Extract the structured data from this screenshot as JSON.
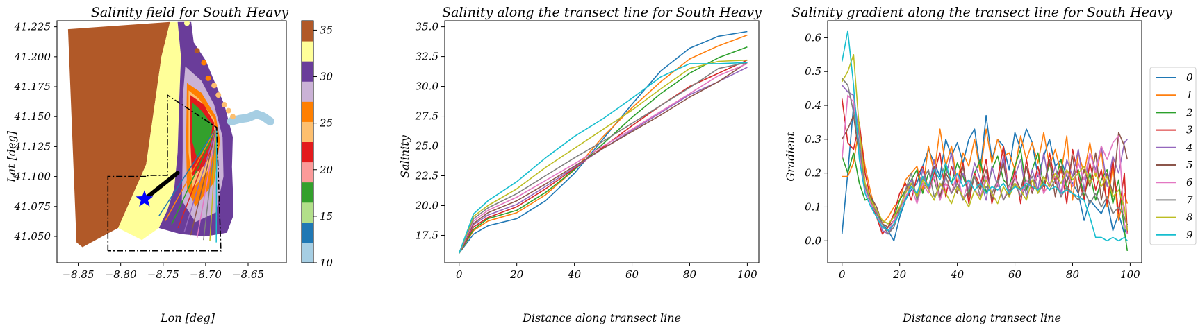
{
  "colors": {
    "series": [
      "#1f77b4",
      "#ff7f0e",
      "#2ca02c",
      "#d62728",
      "#9467bd",
      "#8c564b",
      "#e377c2",
      "#7f7f7f",
      "#bcbd22",
      "#17becf"
    ],
    "paired": [
      "#a6cee3",
      "#1f78b4",
      "#b2df8a",
      "#33a02c",
      "#fb9a99",
      "#e31a1c",
      "#fdbf6f",
      "#ff7f00",
      "#cab2d6",
      "#6a3d9a",
      "#ffff99",
      "#b15928"
    ],
    "star": "#0000ff"
  },
  "chart_data": [
    {
      "type": "heatmap",
      "title": "Salinity field for South Heavy",
      "xlabel": "Lon [deg]",
      "ylabel": "Lat [deg]",
      "xlim": [
        -8.875,
        -8.605
      ],
      "ylim": [
        41.028,
        41.23
      ],
      "xticks": [
        -8.85,
        -8.8,
        -8.75,
        -8.7,
        -8.65
      ],
      "xtick_labels": [
        "−8.85",
        "−8.80",
        "−8.75",
        "−8.70",
        "−8.65"
      ],
      "yticks": [
        41.05,
        41.075,
        41.1,
        41.125,
        41.15,
        41.175,
        41.2,
        41.225
      ],
      "ytick_labels": [
        "41.050",
        "41.075",
        "41.100",
        "41.125",
        "41.150",
        "41.175",
        "41.200",
        "41.225"
      ],
      "colorbar": {
        "min": 10,
        "max": 36,
        "ticks": [
          10,
          15,
          20,
          25,
          30,
          35
        ],
        "tick_labels": [
          "10",
          "15",
          "20",
          "25",
          "30",
          "35"
        ]
      },
      "star": {
        "lon": -8.772,
        "lat": 41.081
      },
      "source_point": {
        "lon": -8.687,
        "lat": 41.141
      },
      "thick_line": {
        "from": [
          -8.772,
          41.081
        ],
        "to": [
          -8.733,
          41.103
        ]
      },
      "box_outer": [
        [
          -8.815,
          41.038
        ],
        [
          -8.815,
          41.1
        ],
        [
          -8.768,
          41.1
        ],
        [
          -8.768,
          41.101
        ],
        [
          -8.745,
          41.101
        ],
        [
          -8.745,
          41.168
        ],
        [
          -8.687,
          41.141
        ],
        [
          -8.682,
          41.038
        ]
      ],
      "transect_endpoints_lat": [
        41.067,
        41.063,
        41.06,
        41.057,
        41.054,
        41.051,
        41.049,
        41.047,
        41.046,
        41.045
      ],
      "plume_points": [
        [
          -8.67,
          41.146
        ],
        [
          -8.66,
          41.148
        ],
        [
          -8.65,
          41.149
        ],
        [
          -8.64,
          41.152
        ],
        [
          -8.632,
          41.15
        ],
        [
          -8.624,
          41.146
        ]
      ]
    },
    {
      "type": "line",
      "title": "Salinity along the transect line for South Heavy",
      "xlabel": "Distance along transect line",
      "ylabel": "Salinity",
      "xlim": [
        -5,
        104
      ],
      "ylim": [
        15.2,
        35.5
      ],
      "xticks": [
        0,
        20,
        40,
        60,
        80,
        100
      ],
      "xtick_labels": [
        "0",
        "20",
        "40",
        "60",
        "80",
        "100"
      ],
      "yticks": [
        17.5,
        20.0,
        22.5,
        25.0,
        27.5,
        30.0,
        32.5,
        35.0
      ],
      "ytick_labels": [
        "17.5",
        "20.0",
        "22.5",
        "25.0",
        "27.5",
        "30.0",
        "32.5",
        "35.0"
      ],
      "x": [
        0,
        5,
        10,
        20,
        30,
        40,
        50,
        60,
        70,
        80,
        90,
        100
      ],
      "series": [
        {
          "name": "0",
          "values": [
            16.0,
            17.6,
            18.3,
            18.9,
            20.4,
            22.7,
            25.6,
            28.5,
            31.3,
            33.2,
            34.2,
            34.6
          ]
        },
        {
          "name": "1",
          "values": [
            16.0,
            17.9,
            18.7,
            19.4,
            20.9,
            23.0,
            25.8,
            28.2,
            30.4,
            32.3,
            33.4,
            34.3
          ]
        },
        {
          "name": "2",
          "values": [
            16.0,
            18.0,
            18.9,
            19.6,
            21.1,
            23.0,
            25.2,
            27.4,
            29.4,
            31.1,
            32.4,
            33.3
          ]
        },
        {
          "name": "3",
          "values": [
            16.0,
            18.2,
            19.0,
            19.9,
            21.4,
            23.1,
            24.9,
            26.7,
            28.4,
            30.0,
            31.1,
            32.2
          ]
        },
        {
          "name": "4",
          "values": [
            16.0,
            18.4,
            19.2,
            20.1,
            21.6,
            23.2,
            24.8,
            26.3,
            27.8,
            29.3,
            30.4,
            31.6
          ]
        },
        {
          "name": "5",
          "values": [
            16.0,
            18.5,
            19.4,
            20.4,
            21.8,
            23.3,
            24.8,
            26.2,
            27.6,
            29.1,
            30.4,
            32.0
          ]
        },
        {
          "name": "6",
          "values": [
            16.0,
            18.7,
            19.6,
            20.7,
            22.1,
            23.5,
            25.0,
            26.4,
            27.9,
            29.4,
            30.9,
            31.9
          ]
        },
        {
          "name": "7",
          "values": [
            16.0,
            18.9,
            19.8,
            21.0,
            22.5,
            24.0,
            25.4,
            26.9,
            28.4,
            29.9,
            31.5,
            32.0
          ]
        },
        {
          "name": "8",
          "values": [
            16.0,
            19.1,
            20.0,
            21.4,
            23.2,
            24.8,
            26.4,
            28.0,
            29.8,
            31.5,
            32.1,
            32.2
          ]
        },
        {
          "name": "9",
          "values": [
            16.0,
            19.3,
            20.4,
            22.0,
            24.0,
            25.8,
            27.3,
            29.0,
            30.8,
            31.9,
            31.9,
            32.0
          ]
        }
      ]
    },
    {
      "type": "line",
      "title": "Salinity gradient along the transect line for South Heavy",
      "xlabel": "Distance along transect line",
      "ylabel": "Gradient",
      "xlim": [
        -5,
        104
      ],
      "ylim": [
        -0.065,
        0.65
      ],
      "xticks": [
        0,
        20,
        40,
        60,
        80,
        100
      ],
      "xtick_labels": [
        "0",
        "20",
        "40",
        "60",
        "80",
        "100"
      ],
      "yticks": [
        0.0,
        0.1,
        0.2,
        0.3,
        0.4,
        0.5,
        0.6
      ],
      "ytick_labels": [
        "0.0",
        "0.1",
        "0.2",
        "0.3",
        "0.4",
        "0.5",
        "0.6"
      ],
      "legend": {
        "placement": "right",
        "entries": [
          "0",
          "1",
          "2",
          "3",
          "4",
          "5",
          "6",
          "7",
          "8",
          "9"
        ]
      },
      "x": [
        0,
        2,
        4,
        6,
        8,
        10,
        12,
        14,
        16,
        18,
        20,
        22,
        24,
        26,
        28,
        30,
        32,
        34,
        36,
        38,
        40,
        42,
        44,
        46,
        48,
        50,
        52,
        54,
        56,
        58,
        60,
        62,
        64,
        66,
        68,
        70,
        72,
        74,
        76,
        78,
        80,
        82,
        84,
        86,
        88,
        90,
        92,
        94,
        96,
        98,
        99
      ],
      "series": [
        {
          "name": "0",
          "values": [
            0.02,
            0.2,
            0.4,
            0.28,
            0.16,
            0.11,
            0.07,
            0.05,
            0.03,
            0.0,
            0.07,
            0.12,
            0.15,
            0.17,
            0.22,
            0.27,
            0.23,
            0.19,
            0.3,
            0.25,
            0.29,
            0.23,
            0.3,
            0.33,
            0.21,
            0.37,
            0.24,
            0.3,
            0.28,
            0.21,
            0.32,
            0.27,
            0.33,
            0.29,
            0.19,
            0.25,
            0.3,
            0.22,
            0.24,
            0.19,
            0.17,
            0.14,
            0.06,
            0.12,
            0.1,
            0.08,
            0.12,
            0.03,
            0.08,
            0.02,
            0.05
          ]
        },
        {
          "name": "1",
          "values": [
            0.19,
            0.19,
            0.23,
            0.34,
            0.22,
            0.14,
            0.08,
            0.05,
            0.07,
            0.1,
            0.12,
            0.18,
            0.2,
            0.22,
            0.15,
            0.28,
            0.2,
            0.33,
            0.22,
            0.28,
            0.17,
            0.26,
            0.22,
            0.3,
            0.2,
            0.33,
            0.23,
            0.3,
            0.25,
            0.26,
            0.21,
            0.31,
            0.24,
            0.29,
            0.23,
            0.32,
            0.22,
            0.27,
            0.2,
            0.31,
            0.12,
            0.26,
            0.2,
            0.29,
            0.19,
            0.27,
            0.1,
            0.22,
            0.06,
            0.14,
            0.11
          ]
        },
        {
          "name": "2",
          "values": [
            0.25,
            0.2,
            0.26,
            0.17,
            0.12,
            0.13,
            0.08,
            0.06,
            0.05,
            0.07,
            0.12,
            0.15,
            0.18,
            0.21,
            0.14,
            0.2,
            0.18,
            0.12,
            0.22,
            0.17,
            0.23,
            0.19,
            0.14,
            0.2,
            0.24,
            0.14,
            0.21,
            0.25,
            0.18,
            0.16,
            0.22,
            0.27,
            0.15,
            0.21,
            0.26,
            0.16,
            0.23,
            0.18,
            0.24,
            0.15,
            0.19,
            0.21,
            0.13,
            0.2,
            0.12,
            0.18,
            0.21,
            0.11,
            0.18,
            0.03,
            -0.03
          ]
        },
        {
          "name": "3",
          "values": [
            0.42,
            0.29,
            0.27,
            0.35,
            0.2,
            0.12,
            0.07,
            0.02,
            0.04,
            0.08,
            0.14,
            0.17,
            0.12,
            0.19,
            0.22,
            0.15,
            0.2,
            0.26,
            0.13,
            0.22,
            0.17,
            0.23,
            0.11,
            0.2,
            0.16,
            0.24,
            0.11,
            0.18,
            0.28,
            0.13,
            0.21,
            0.11,
            0.24,
            0.15,
            0.22,
            0.14,
            0.26,
            0.17,
            0.22,
            0.11,
            0.27,
            0.19,
            0.12,
            0.23,
            0.15,
            0.21,
            0.11,
            0.24,
            0.08,
            0.2,
            0.02
          ]
        },
        {
          "name": "4",
          "values": [
            0.46,
            0.44,
            0.43,
            0.31,
            0.17,
            0.12,
            0.09,
            0.03,
            0.02,
            0.05,
            0.1,
            0.14,
            0.18,
            0.13,
            0.21,
            0.15,
            0.24,
            0.12,
            0.19,
            0.26,
            0.14,
            0.2,
            0.15,
            0.23,
            0.18,
            0.12,
            0.22,
            0.16,
            0.25,
            0.14,
            0.19,
            0.24,
            0.13,
            0.21,
            0.15,
            0.26,
            0.16,
            0.22,
            0.14,
            0.24,
            0.19,
            0.27,
            0.15,
            0.26,
            0.21,
            0.28,
            0.16,
            0.25,
            0.2,
            0.29,
            0.3
          ]
        },
        {
          "name": "5",
          "values": [
            0.3,
            0.33,
            0.37,
            0.25,
            0.16,
            0.13,
            0.1,
            0.05,
            0.04,
            0.06,
            0.1,
            0.12,
            0.17,
            0.13,
            0.19,
            0.16,
            0.22,
            0.13,
            0.2,
            0.17,
            0.14,
            0.22,
            0.13,
            0.19,
            0.15,
            0.21,
            0.12,
            0.17,
            0.23,
            0.13,
            0.19,
            0.15,
            0.22,
            0.14,
            0.2,
            0.16,
            0.24,
            0.13,
            0.22,
            0.17,
            0.25,
            0.14,
            0.21,
            0.16,
            0.26,
            0.12,
            0.2,
            0.14,
            0.32,
            0.28,
            0.24
          ]
        },
        {
          "name": "6",
          "values": [
            0.24,
            0.43,
            0.41,
            0.26,
            0.15,
            0.11,
            0.08,
            0.04,
            0.03,
            0.06,
            0.09,
            0.13,
            0.16,
            0.11,
            0.17,
            0.14,
            0.19,
            0.12,
            0.17,
            0.14,
            0.2,
            0.12,
            0.18,
            0.15,
            0.13,
            0.19,
            0.14,
            0.17,
            0.12,
            0.16,
            0.19,
            0.13,
            0.18,
            0.15,
            0.2,
            0.14,
            0.17,
            0.19,
            0.13,
            0.21,
            0.16,
            0.23,
            0.18,
            0.26,
            0.2,
            0.28,
            0.24,
            0.29,
            0.31,
            0.05,
            0.02
          ]
        },
        {
          "name": "7",
          "values": [
            0.48,
            0.46,
            0.38,
            0.28,
            0.16,
            0.12,
            0.08,
            0.05,
            0.02,
            0.04,
            0.09,
            0.15,
            0.2,
            0.12,
            0.18,
            0.21,
            0.13,
            0.16,
            0.19,
            0.14,
            0.17,
            0.12,
            0.15,
            0.19,
            0.13,
            0.16,
            0.14,
            0.18,
            0.12,
            0.15,
            0.17,
            0.13,
            0.16,
            0.19,
            0.14,
            0.17,
            0.15,
            0.18,
            0.13,
            0.16,
            0.14,
            0.12,
            0.15,
            0.11,
            0.14,
            0.1,
            0.13,
            0.08,
            0.1,
            0.07,
            0.04
          ]
        },
        {
          "name": "8",
          "values": [
            0.47,
            0.5,
            0.55,
            0.33,
            0.17,
            0.12,
            0.09,
            0.06,
            0.05,
            0.07,
            0.1,
            0.14,
            0.17,
            0.13,
            0.18,
            0.15,
            0.12,
            0.17,
            0.14,
            0.11,
            0.16,
            0.13,
            0.1,
            0.15,
            0.12,
            0.18,
            0.14,
            0.11,
            0.16,
            0.13,
            0.17,
            0.15,
            0.12,
            0.18,
            0.14,
            0.19,
            0.16,
            0.2,
            0.17,
            0.21,
            0.18,
            0.2,
            0.22,
            0.17,
            0.2,
            0.16,
            0.19,
            0.13,
            0.15,
            0.1,
            0.03
          ]
        },
        {
          "name": "9",
          "values": [
            0.53,
            0.62,
            0.46,
            0.24,
            0.14,
            0.1,
            0.07,
            0.04,
            0.03,
            0.05,
            0.08,
            0.12,
            0.16,
            0.14,
            0.19,
            0.16,
            0.21,
            0.18,
            0.23,
            0.17,
            0.2,
            0.16,
            0.18,
            0.15,
            0.17,
            0.14,
            0.16,
            0.15,
            0.17,
            0.14,
            0.16,
            0.15,
            0.17,
            0.16,
            0.15,
            0.17,
            0.15,
            0.16,
            0.14,
            0.15,
            0.14,
            0.13,
            0.12,
            0.07,
            0.01,
            0.01,
            0.0,
            0.01,
            0.0,
            0.01,
            0.0
          ]
        }
      ]
    }
  ]
}
